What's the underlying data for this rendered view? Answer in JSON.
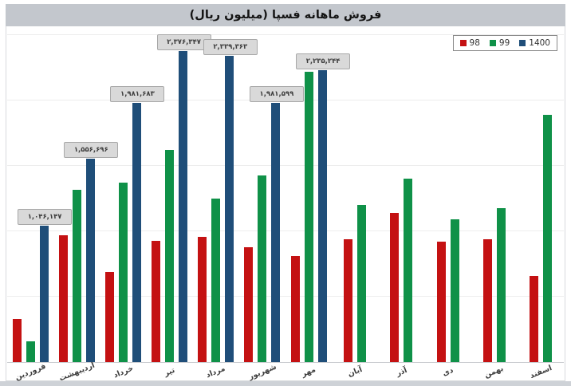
{
  "title": "فروش ماهانه فسپا (میلیون ریال)",
  "legend": {
    "position": "top-right",
    "items": [
      {
        "label": "98",
        "color": "#c41112"
      },
      {
        "label": "99",
        "color": "#0f9148"
      },
      {
        "label": "1400",
        "color": "#1f4e79"
      }
    ]
  },
  "colors": {
    "series_98": "#c41112",
    "series_99": "#0f9148",
    "series_1400": "#1f4e79",
    "title_band": "#c3c7cd",
    "data_label_bg": "#d9d9d9",
    "data_label_border": "#a8a8a8",
    "gridline": "#ededed",
    "plot_bg": "#ffffff"
  },
  "chart_data": {
    "type": "bar",
    "title": "فروش ماهانه فسپا (میلیون ریال)",
    "xlabel": "",
    "ylabel": "",
    "ylim": [
      0,
      2550000
    ],
    "gridlines": "horizontal every 500000, y-axis hidden",
    "legend_position": "top-right",
    "categories": [
      "فروردین",
      "اردیبهشت",
      "خرداد",
      "تیر",
      "مرداد",
      "شهریور",
      "مهر",
      "آبان",
      "آذر",
      "دی",
      "بهمن",
      "اسفند"
    ],
    "series": [
      {
        "name": "98",
        "color": "#c41112",
        "values": [
          330000,
          970000,
          690000,
          930000,
          960000,
          880000,
          810000,
          940000,
          1140000,
          920000,
          940000,
          660000
        ],
        "note": "values estimated from gridlines"
      },
      {
        "name": "99",
        "color": "#0f9148",
        "values": [
          160000,
          1320000,
          1370000,
          1620000,
          1250000,
          1430000,
          2220000,
          1200000,
          1400000,
          1090000,
          1180000,
          1890000
        ],
        "note": "values estimated from gridlines"
      },
      {
        "name": "1400",
        "color": "#1f4e79",
        "values": [
          1046147,
          1556696,
          1981683,
          2376347,
          2339363,
          1981599,
          2235244,
          null,
          null,
          null,
          null,
          null
        ],
        "note": "exact values shown as data labels; no data after مهر"
      }
    ],
    "data_labels": [
      {
        "month_index": 0,
        "series": "1400",
        "value": 1046147,
        "text": "۱,۰۴۶,۱۴۷"
      },
      {
        "month_index": 1,
        "series": "1400",
        "value": 1556696,
        "text": "۱,۵۵۶,۶۹۶"
      },
      {
        "month_index": 2,
        "series": "1400",
        "value": 1981683,
        "text": "۱,۹۸۱,۶۸۳"
      },
      {
        "month_index": 3,
        "series": "1400",
        "value": 2376347,
        "text": "۲,۳۷۶,۳۴۷"
      },
      {
        "month_index": 4,
        "series": "1400",
        "value": 2339363,
        "text": "۲,۳۳۹,۳۶۳"
      },
      {
        "month_index": 5,
        "series": "1400",
        "value": 1981599,
        "text": "۱,۹۸۱,۵۹۹"
      },
      {
        "month_index": 6,
        "series": "1400",
        "value": 2235244,
        "text": "۲,۲۳۵,۲۴۴"
      }
    ]
  }
}
